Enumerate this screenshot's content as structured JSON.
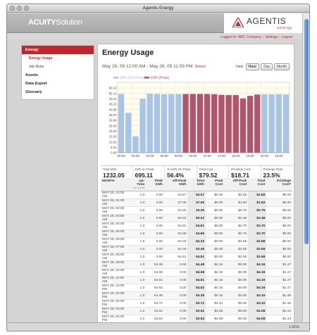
{
  "window": {
    "title": "Agentis Energy"
  },
  "header": {
    "brand_bold": "ACUITY",
    "brand_light": "Solution",
    "agentis_name": "AGENTIS",
    "agentis_sub": "energy"
  },
  "toplinks": {
    "logged_in": "Logged In: ABC Company",
    "settings": "Settings",
    "logout": "Logout"
  },
  "sidebar": {
    "energy": "Energy",
    "energy_usage": "Energy Usage",
    "job_runs": "Job Runs",
    "assets": "Assets",
    "data_export": "Data Export",
    "glossary": "Glossary"
  },
  "main": {
    "title": "Energy Usage",
    "date_range": "May 26, 09 12:00 AM - May 26, 09 11:59 PM",
    "select_label": "Select",
    "view_label": "View:",
    "view_hour": "Hour",
    "view_day": "Day",
    "view_month": "Month"
  },
  "summary": [
    {
      "label": "Total kWh",
      "value": "1232.05"
    },
    {
      "label": "kWh on Peak",
      "value": "695.11"
    },
    {
      "label": "% kWh On Peak",
      "value": "56.4%"
    },
    {
      "label": "Total Cost",
      "value": "$79.52"
    },
    {
      "label": "Privilege Cost",
      "value": "$18.71"
    },
    {
      "label": "Privilege Rate",
      "value": "23.5%"
    }
  ],
  "table": {
    "headers": [
      "MONTH",
      "Up-Time",
      "Peak kWh",
      "Off-Peak kWh",
      "Total kWh",
      "Peak Cost",
      "Off-Peak Cost",
      "Total Cost",
      "Privilege Cost*"
    ],
    "uptime_note": "(in hours)",
    "rows": [
      [
        "MAY 26, 12:00 AM",
        "1.0",
        "0.00",
        "54.57",
        "54.57",
        "$0.00",
        "$2.69",
        "$2.69",
        "$0.00"
      ],
      [
        "MAY 26, 01:00 AM",
        "1.0",
        "0.00",
        "37.05",
        "37.05",
        "$0.00",
        "$1.83",
        "$1.83",
        "$0.00"
      ],
      [
        "MAY 26, 02:00 AM",
        "1.0",
        "0.00",
        "15.25",
        "15.25",
        "$0.00",
        "$0.75",
        "$0.75",
        "$0.00"
      ],
      [
        "MAY 26, 03:00 AM",
        "1.0",
        "0.00",
        "50.22",
        "50.22",
        "$0.00",
        "$2.48",
        "$2.48",
        "$0.00"
      ],
      [
        "MAY 26, 04:00 AM",
        "1.0",
        "0.00",
        "54.81",
        "54.81",
        "$0.00",
        "$2.70",
        "$2.70",
        "$0.00"
      ],
      [
        "MAY 26, 05:00 AM",
        "1.0",
        "0.00",
        "54.66",
        "54.66",
        "$0.00",
        "$2.70",
        "$2.70",
        "$0.00"
      ],
      [
        "MAY 26, 06:00 AM",
        "1.0",
        "0.00",
        "54.33",
        "54.33",
        "$0.00",
        "$2.68",
        "$2.68",
        "$0.00"
      ],
      [
        "MAY 26, 07:00 AM",
        "1.0",
        "0.00",
        "54.45",
        "54.45",
        "$0.00",
        "$2.69",
        "$2.69",
        "$0.00"
      ],
      [
        "MAY 26, 08:00 AM",
        "1.0",
        "0.00",
        "54.51",
        "54.51",
        "$0.00",
        "$2.69",
        "$2.69",
        "$0.00"
      ],
      [
        "MAY 26, 09:00 AM",
        "1.0",
        "54.48",
        "0.00",
        "54.48",
        "$4.16",
        "$0.00",
        "$4.16",
        "$1.47"
      ],
      [
        "MAY 26, 10:00 AM",
        "1.0",
        "54.58",
        "0.00",
        "54.58",
        "$4.16",
        "$0.00",
        "$4.16",
        "$1.47"
      ],
      [
        "MAY 26, 11:00 AM",
        "1.0",
        "54.61",
        "0.00",
        "54.61",
        "$4.16",
        "$0.00",
        "$4.16",
        "$1.47"
      ],
      [
        "MAY 26, 12:00 PM",
        "1.0",
        "54.52",
        "0.00",
        "54.52",
        "$4.16",
        "$0.00",
        "$4.16",
        "$1.47"
      ],
      [
        "MAY 26, 01:00 PM",
        "1.0",
        "54.35",
        "0.00",
        "54.35",
        "$4.15",
        "$0.00",
        "$4.15",
        "$1.46"
      ],
      [
        "MAY 26, 02:00 PM",
        "1.0",
        "53.72",
        "0.00",
        "53.72",
        "$4.10",
        "$0.00",
        "$4.10",
        "$1.45"
      ],
      [
        "MAY 26, 03:00 PM",
        "1.0",
        "53.52",
        "0.00",
        "53.52",
        "$4.08",
        "$0.00",
        "$4.08",
        "$1.44"
      ],
      [
        "MAY 26, 04:00 PM",
        "1.0",
        "53.54",
        "0.00",
        "53.54",
        "$4.08",
        "$0.00",
        "$4.08",
        "$1.44"
      ]
    ]
  },
  "status": {
    "time": "1.431s"
  },
  "colors": {
    "off_peak": "#a8c4e6",
    "peak": "#b05570",
    "accent": "#c0272d"
  },
  "chart_data": {
    "type": "bar",
    "legend": [
      "kWh (Non-Peak)",
      "kWh (Peak)"
    ],
    "legend_position": "top-left",
    "grid": true,
    "ylim": [
      0,
      60.13
    ],
    "yticks": [
      "0.00",
      "5.01",
      "10.02",
      "15.03",
      "20.04",
      "25.05",
      "30.06",
      "35.07",
      "40.08",
      "45.10",
      "50.11",
      "55.12",
      "60.13"
    ],
    "categories": [
      "00:00",
      "01:00",
      "02:00",
      "03:00",
      "04:00",
      "05:00",
      "06:00",
      "07:00",
      "08:00",
      "09:00",
      "10:00",
      "11:00",
      "12:00",
      "13:00",
      "14:00",
      "15:00",
      "16:00",
      "17:00",
      "18:00",
      "19:00",
      "20:00",
      "21:00",
      "22:00",
      "23:00"
    ],
    "xticks": [
      "00:00",
      "02:00",
      "04:00",
      "06:00",
      "08:00",
      "10:00",
      "12:00",
      "14:00",
      "16:00",
      "18:00",
      "20:00",
      "22:00"
    ],
    "series": [
      {
        "name": "kWh (Non-Peak)",
        "values": [
          54.57,
          37.05,
          15.25,
          50.22,
          54.81,
          54.66,
          54.33,
          54.45,
          54.51,
          0,
          0,
          0,
          0,
          0,
          0,
          0,
          0,
          0,
          0,
          0,
          54.3,
          54.2,
          54.4,
          54.1
        ]
      },
      {
        "name": "kWh (Peak)",
        "values": [
          0,
          0,
          0,
          0,
          0,
          0,
          0,
          0,
          0,
          54.48,
          54.58,
          54.61,
          54.52,
          54.35,
          53.72,
          53.52,
          53.54,
          50.5,
          52.8,
          54.0,
          0,
          0,
          0,
          0
        ]
      }
    ]
  }
}
